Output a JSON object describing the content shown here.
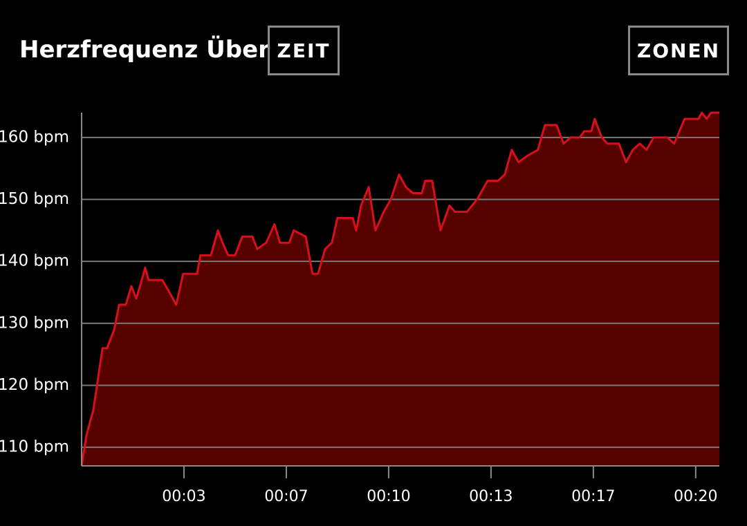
{
  "header": {
    "title": "Herzfrequenz Über",
    "buttons": [
      "ZEIT",
      "ZONEN"
    ]
  },
  "chart_data": {
    "type": "area",
    "x": [
      0,
      0.16,
      0.38,
      0.5,
      0.68,
      0.83,
      1.06,
      1.22,
      1.44,
      1.62,
      1.78,
      1.96,
      2.07,
      2.18,
      2.63,
      2.86,
      3.08,
      3.31,
      3.76,
      3.87,
      4.21,
      4.44,
      4.59,
      4.77,
      5,
      5.23,
      5.56,
      5.72,
      6.01,
      6.28,
      6.46,
      6.76,
      6.91,
      7.3,
      7.52,
      7.7,
      7.93,
      8.15,
      8.33,
      8.83,
      8.94,
      9.1,
      9.35,
      9.57,
      9.84,
      10.07,
      10.34,
      10.56,
      10.79,
      11.08,
      11.19,
      11.42,
      11.69,
      11.98,
      12.16,
      12.55,
      12.88,
      13.22,
      13.56,
      13.78,
      14.01,
      14.23,
      14.5,
      14.86,
      15.09,
      15.47,
      15.7,
      15.92,
      16.22,
      16.37,
      16.6,
      16.71,
      16.94,
      17.12,
      17.34,
      17.5,
      17.73,
      17.95,
      18.18,
      18.4,
      18.63,
      19.08,
      19.3,
      19.64,
      20.09,
      20.2,
      20.36,
      20.5,
      20.77
    ],
    "values": [
      107,
      112,
      116,
      120,
      126,
      126,
      129,
      133,
      133,
      136,
      134,
      137,
      139,
      137,
      137,
      135,
      133,
      138,
      138,
      141,
      141,
      145,
      143,
      141,
      141,
      144,
      144,
      142,
      143,
      146,
      143,
      143,
      145,
      144,
      138,
      138,
      142,
      143,
      147,
      147,
      145,
      149,
      152,
      145,
      148,
      150,
      154,
      152,
      151,
      151,
      153,
      153,
      145,
      149,
      148,
      148,
      150,
      153,
      153,
      154,
      158,
      156,
      157,
      158,
      162,
      162,
      159,
      160,
      160,
      161,
      161,
      163,
      160,
      159,
      159,
      159,
      156,
      158,
      159,
      158,
      160,
      160,
      159,
      163,
      163,
      164,
      163,
      164,
      164
    ],
    "color": "#d8101c",
    "area_color": "#560000",
    "xlim": [
      0,
      20.77
    ],
    "xticks": [
      {
        "value": 3.333,
        "label": "00:03"
      },
      {
        "value": 6.667,
        "label": "00:07"
      },
      {
        "value": 10,
        "label": "00:10"
      },
      {
        "value": 13.333,
        "label": "00:13"
      },
      {
        "value": 16.667,
        "label": "00:17"
      },
      {
        "value": 20,
        "label": "00:20"
      }
    ],
    "ylim": [
      107,
      164
    ],
    "yticks": [
      {
        "value": 110,
        "label": "110 bpm"
      },
      {
        "value": 120,
        "label": "120 bpm"
      },
      {
        "value": 130,
        "label": "130 bpm"
      },
      {
        "value": 140,
        "label": "140 bpm"
      },
      {
        "value": 150,
        "label": "150 bpm"
      },
      {
        "value": 160,
        "label": "160 bpm"
      }
    ],
    "grid": true
  }
}
